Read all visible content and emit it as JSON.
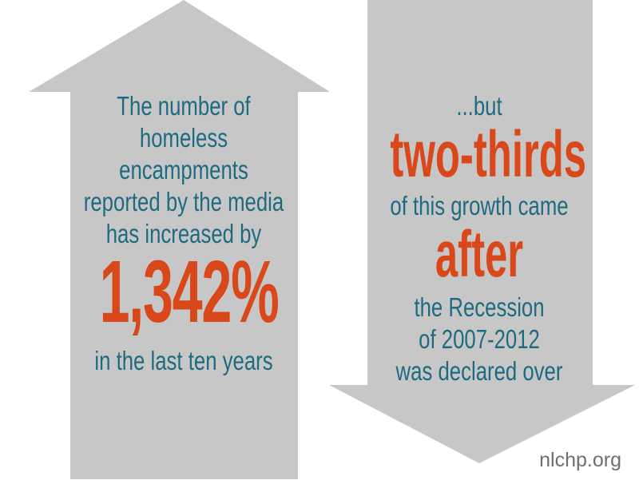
{
  "left": {
    "lead": [
      "The number of",
      "homeless",
      "encampments",
      "reported by the media",
      "has increased by"
    ],
    "figure": "1,342%",
    "tail": "in the last ten years"
  },
  "right": {
    "lead": "...but",
    "emphasis1": "two-thirds",
    "middle": "of this growth came",
    "emphasis2": "after",
    "tail": [
      "the Recession",
      "of 2007-2012",
      "was declared over"
    ]
  },
  "site": "nlchp.org",
  "colors": {
    "arrow": "#c7c7c7",
    "text_teal": "#1e6b80",
    "accent_orange": "#d9481b",
    "site_gray": "#6f6f6f"
  }
}
